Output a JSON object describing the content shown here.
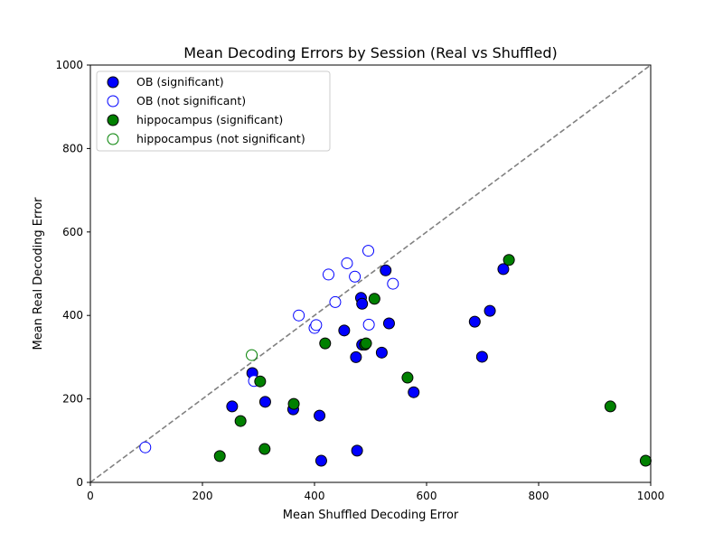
{
  "chart_data": {
    "type": "scatter",
    "title": "Mean Decoding Errors by Session (Real vs Shuffled)",
    "xlabel": "Mean Shuffled Decoding Error",
    "ylabel": "Mean Real Decoding Error",
    "xlim": [
      0,
      1000
    ],
    "ylim": [
      0,
      1000
    ],
    "xticks": [
      0,
      200,
      400,
      600,
      800,
      1000
    ],
    "yticks": [
      0,
      200,
      400,
      600,
      800,
      1000
    ],
    "grid": false,
    "legend_position": "top-left",
    "reference_line": {
      "style": "dashed",
      "color": "#808080",
      "from": [
        0,
        0
      ],
      "to": [
        1000,
        1000
      ]
    },
    "series": [
      {
        "name": "OB (significant)",
        "fill": "#0000ff",
        "edge": "#000000",
        "points": [
          [
            253,
            182
          ],
          [
            289,
            262
          ],
          [
            312,
            193
          ],
          [
            362,
            175
          ],
          [
            409,
            160
          ],
          [
            412,
            52
          ],
          [
            453,
            364
          ],
          [
            474,
            300
          ],
          [
            476,
            76
          ],
          [
            483,
            442
          ],
          [
            485,
            428
          ],
          [
            485,
            330
          ],
          [
            520,
            311
          ],
          [
            527,
            508
          ],
          [
            533,
            381
          ],
          [
            577,
            216
          ],
          [
            686,
            385
          ],
          [
            699,
            301
          ],
          [
            713,
            411
          ],
          [
            737,
            511
          ]
        ]
      },
      {
        "name": "OB (not significant)",
        "fill": "#ffffff",
        "edge": "#0000ff",
        "points": [
          [
            98,
            84
          ],
          [
            292,
            243
          ],
          [
            372,
            400
          ],
          [
            400,
            370
          ],
          [
            403,
            377
          ],
          [
            425,
            498
          ],
          [
            437,
            432
          ],
          [
            458,
            525
          ],
          [
            472,
            493
          ],
          [
            496,
            555
          ],
          [
            497,
            378
          ],
          [
            540,
            476
          ]
        ]
      },
      {
        "name": "hippocampus (significant)",
        "fill": "#008000",
        "edge": "#000000",
        "points": [
          [
            231,
            63
          ],
          [
            268,
            147
          ],
          [
            303,
            242
          ],
          [
            311,
            80
          ],
          [
            363,
            188
          ],
          [
            419,
            333
          ],
          [
            490,
            330
          ],
          [
            492,
            333
          ],
          [
            507,
            440
          ],
          [
            566,
            251
          ],
          [
            747,
            533
          ],
          [
            928,
            182
          ],
          [
            991,
            52
          ]
        ]
      },
      {
        "name": "hippocampus (not significant)",
        "fill": "#ffffff",
        "edge": "#008000",
        "points": [
          [
            288,
            305
          ]
        ]
      }
    ]
  }
}
